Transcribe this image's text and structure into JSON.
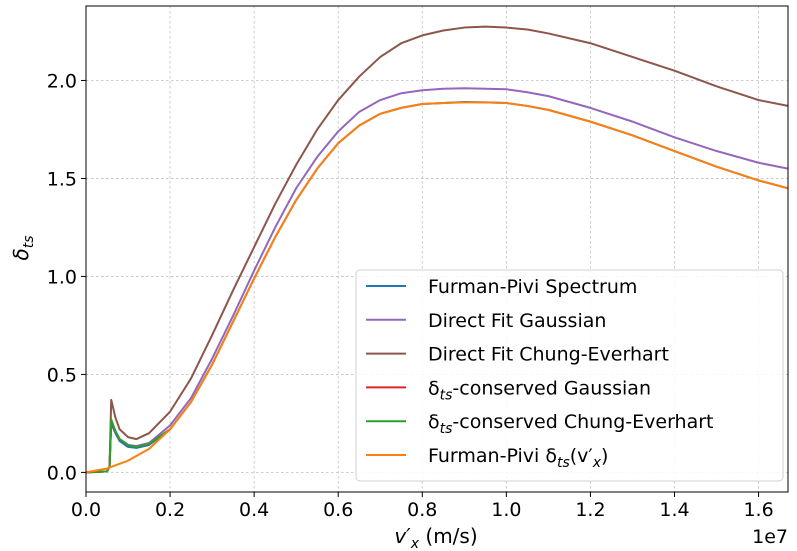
{
  "chart_data": {
    "type": "line",
    "title": "",
    "xlabel_main": "v′",
    "xlabel_sub": "x",
    "xlabel_units": "(m/s)",
    "ylabel_main": "δ",
    "ylabel_sub": "ts",
    "x_multiplier_label": "1e7",
    "grid": true,
    "xlim": [
      0.0,
      1.67
    ],
    "ylim": [
      -0.1,
      2.38
    ],
    "xticks": [
      0.0,
      0.2,
      0.4,
      0.6,
      0.8,
      1.0,
      1.2,
      1.4,
      1.6
    ],
    "xtick_labels": [
      "0.0",
      "0.2",
      "0.4",
      "0.6",
      "0.8",
      "1.0",
      "1.2",
      "1.4",
      "1.6"
    ],
    "yticks": [
      0.0,
      0.5,
      1.0,
      1.5,
      2.0
    ],
    "ytick_labels": [
      "0.0",
      "0.5",
      "1.0",
      "1.5",
      "2.0"
    ],
    "legend_position": "lower-right",
    "series": [
      {
        "name": "Furman-Pivi Spectrum",
        "label_parts": [
          {
            "t": "Furman-Pivi Spectrum"
          }
        ],
        "color": "#1f77b4",
        "x": [
          0.0,
          0.05,
          0.056,
          0.06,
          0.07,
          0.08,
          0.1,
          0.12,
          0.15,
          0.2,
          0.25,
          0.3,
          0.35,
          0.4,
          0.45,
          0.5,
          0.55,
          0.6,
          0.65,
          0.7,
          0.75,
          0.8,
          0.85,
          0.9,
          0.95,
          1.0,
          1.05,
          1.1,
          1.2,
          1.3,
          1.4,
          1.5,
          1.6,
          1.67
        ],
        "y": [
          0.0,
          0.005,
          0.03,
          0.25,
          0.2,
          0.16,
          0.13,
          0.125,
          0.14,
          0.22,
          0.36,
          0.55,
          0.77,
          0.99,
          1.2,
          1.39,
          1.55,
          1.68,
          1.77,
          1.83,
          1.86,
          1.88,
          1.885,
          1.89,
          1.888,
          1.885,
          1.87,
          1.85,
          1.79,
          1.72,
          1.64,
          1.56,
          1.49,
          1.45
        ]
      },
      {
        "name": "Direct Fit Gaussian",
        "label_parts": [
          {
            "t": "Direct Fit Gaussian"
          }
        ],
        "color": "#9467bd",
        "x": [
          0.0,
          0.05,
          0.056,
          0.06,
          0.07,
          0.08,
          0.1,
          0.12,
          0.15,
          0.2,
          0.25,
          0.3,
          0.35,
          0.4,
          0.45,
          0.5,
          0.55,
          0.6,
          0.65,
          0.7,
          0.75,
          0.8,
          0.85,
          0.9,
          0.95,
          1.0,
          1.05,
          1.1,
          1.2,
          1.3,
          1.4,
          1.5,
          1.6,
          1.67
        ],
        "y": [
          0.0,
          0.005,
          0.03,
          0.26,
          0.21,
          0.17,
          0.14,
          0.135,
          0.15,
          0.24,
          0.38,
          0.58,
          0.8,
          1.03,
          1.25,
          1.45,
          1.61,
          1.74,
          1.84,
          1.9,
          1.935,
          1.95,
          1.958,
          1.96,
          1.958,
          1.955,
          1.94,
          1.92,
          1.86,
          1.79,
          1.71,
          1.64,
          1.58,
          1.55
        ]
      },
      {
        "name": "Direct Fit Chung-Everhart",
        "label_parts": [
          {
            "t": "Direct Fit Chung-Everhart"
          }
        ],
        "color": "#8c564b",
        "x": [
          0.0,
          0.05,
          0.056,
          0.06,
          0.07,
          0.08,
          0.1,
          0.12,
          0.15,
          0.2,
          0.25,
          0.3,
          0.35,
          0.4,
          0.45,
          0.5,
          0.55,
          0.6,
          0.65,
          0.7,
          0.75,
          0.8,
          0.85,
          0.9,
          0.95,
          1.0,
          1.05,
          1.1,
          1.2,
          1.3,
          1.4,
          1.5,
          1.6,
          1.67
        ],
        "y": [
          0.0,
          0.005,
          0.03,
          0.37,
          0.28,
          0.22,
          0.18,
          0.17,
          0.2,
          0.31,
          0.48,
          0.7,
          0.93,
          1.15,
          1.37,
          1.57,
          1.75,
          1.9,
          2.02,
          2.12,
          2.19,
          2.23,
          2.255,
          2.27,
          2.275,
          2.27,
          2.26,
          2.24,
          2.19,
          2.12,
          2.05,
          1.97,
          1.9,
          1.87
        ]
      },
      {
        "name": "δts-conserved Gaussian",
        "label_parts": [
          {
            "t": "δ"
          },
          {
            "t": "ts",
            "sub": true
          },
          {
            "t": "-conserved Gaussian"
          }
        ],
        "color": "#d62728",
        "x": [
          0.0,
          0.05,
          0.056,
          0.06,
          0.07,
          0.08,
          0.1,
          0.12,
          0.15,
          0.2
        ],
        "y": [
          0.0,
          0.005,
          0.03,
          0.26,
          0.21,
          0.17,
          0.14,
          0.13,
          0.145,
          0.22
        ]
      },
      {
        "name": "δts-conserved Chung-Everhart",
        "label_parts": [
          {
            "t": "δ"
          },
          {
            "t": "ts",
            "sub": true
          },
          {
            "t": "-conserved Chung-Everhart"
          }
        ],
        "color": "#2ca02c",
        "x": [
          0.0,
          0.05,
          0.056,
          0.06,
          0.07,
          0.08,
          0.1,
          0.12,
          0.15,
          0.2
        ],
        "y": [
          0.0,
          0.005,
          0.03,
          0.27,
          0.21,
          0.17,
          0.14,
          0.13,
          0.145,
          0.22
        ]
      },
      {
        "name": "Furman-Pivi δts(v′x)",
        "label_parts": [
          {
            "t": "Furman-Pivi δ"
          },
          {
            "t": "ts",
            "sub": true
          },
          {
            "t": "(v′"
          },
          {
            "t": "x",
            "sub": true
          },
          {
            "t": ")"
          }
        ],
        "color": "#ff7f0e",
        "x": [
          0.0,
          0.05,
          0.1,
          0.15,
          0.2,
          0.25,
          0.3,
          0.35,
          0.4,
          0.45,
          0.5,
          0.55,
          0.6,
          0.65,
          0.7,
          0.75,
          0.8,
          0.85,
          0.9,
          0.95,
          1.0,
          1.05,
          1.1,
          1.2,
          1.3,
          1.4,
          1.5,
          1.6,
          1.67
        ],
        "y": [
          0.0,
          0.02,
          0.06,
          0.12,
          0.22,
          0.36,
          0.55,
          0.77,
          0.99,
          1.2,
          1.39,
          1.55,
          1.68,
          1.77,
          1.83,
          1.86,
          1.88,
          1.885,
          1.888,
          1.888,
          1.885,
          1.87,
          1.85,
          1.79,
          1.72,
          1.64,
          1.56,
          1.49,
          1.45
        ]
      }
    ]
  }
}
